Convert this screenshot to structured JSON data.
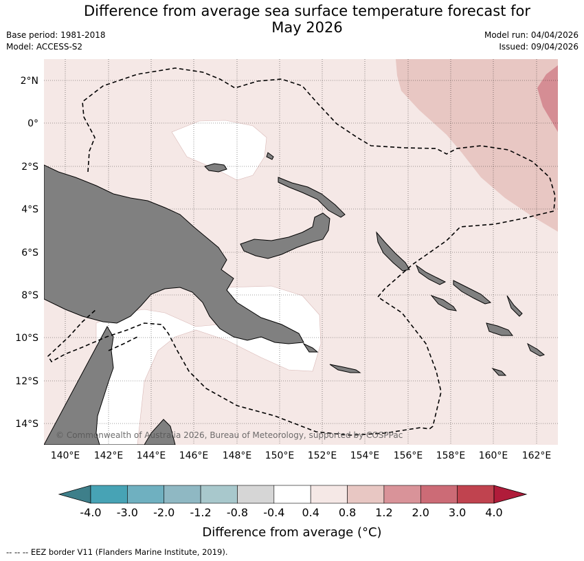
{
  "header": {
    "title_line1": "Difference from average sea surface temperature forecast for",
    "title_line2": "May 2026",
    "base_period": "Base period: 1981-2018",
    "model": "Model: ACCESS-S2",
    "model_run": "Model run: 04/04/2026",
    "issued": "Issued: 09/04/2026"
  },
  "map": {
    "copyright": "© Commonwealth of Australia 2026, Bureau of Meteorology, supported by COSPPac",
    "lon_labels": [
      "140°E",
      "142°E",
      "144°E",
      "146°E",
      "148°E",
      "150°E",
      "152°E",
      "154°E",
      "156°E",
      "158°E",
      "160°E",
      "162°E"
    ],
    "lat_labels": [
      "2°N",
      "0°",
      "2°S",
      "4°S",
      "6°S",
      "8°S",
      "10°S",
      "12°S",
      "14°S"
    ],
    "land_color": "#808080",
    "grid": "dotted"
  },
  "colorbar": {
    "title": "Difference from average (°C)",
    "ticks": [
      "-4.0",
      "-3.0",
      "-2.0",
      "-1.2",
      "-0.8",
      "-0.4",
      "0.4",
      "0.8",
      "1.2",
      "2.0",
      "3.0",
      "4.0"
    ],
    "colors": [
      "#3e7f8a",
      "#47a3b5",
      "#6fb0c0",
      "#8fb8c3",
      "#a8c8cc",
      "#d6d6d6",
      "#ffffff",
      "#f5e8e6",
      "#e8c7c3",
      "#d99399",
      "#cc6b76",
      "#c0434f",
      "#b01c3a"
    ]
  },
  "legend": {
    "eez_line": "-- -- -- EEZ border V11 (Flanders Marine Institute, 2019)."
  }
}
